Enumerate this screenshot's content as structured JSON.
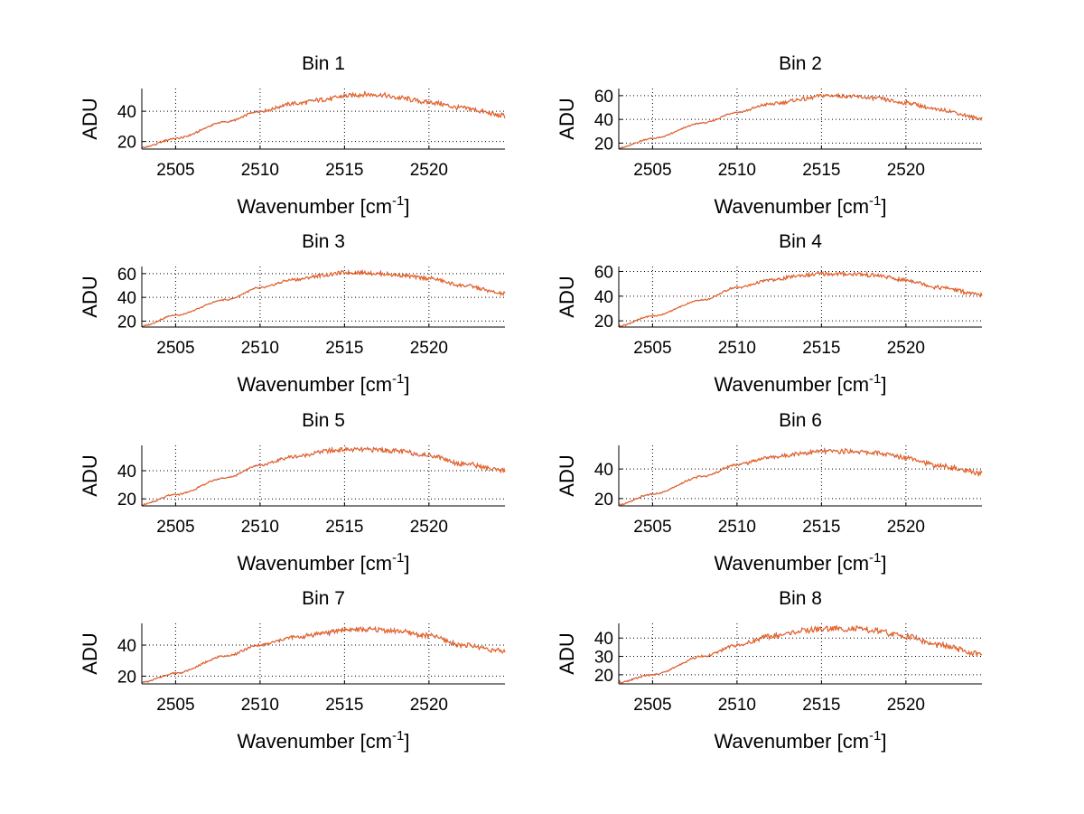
{
  "chart_data": [
    {
      "type": "line",
      "title": "Bin 1",
      "xlabel": "Wavenumber [cm",
      "xlabel_sup": "-1",
      "xlabel_suffix": "]",
      "ylabel": "ADU",
      "xlim": [
        2503,
        2524.5
      ],
      "ylim": [
        15,
        55
      ],
      "xticks": [
        2505,
        2510,
        2515,
        2520
      ],
      "yticks": [
        20,
        40
      ],
      "series": [
        {
          "color": "#0000ff",
          "x": [
            2503,
            2505,
            2508,
            2510,
            2512,
            2514,
            2515,
            2516,
            2517,
            2518,
            2520,
            2522,
            2524.5
          ],
          "y": [
            16,
            22,
            33,
            40,
            45,
            48,
            50,
            51,
            51,
            49,
            46,
            42,
            37
          ]
        },
        {
          "color": "#ff6600",
          "x": [
            2503,
            2505,
            2508,
            2510,
            2512,
            2514,
            2515,
            2516,
            2517,
            2518,
            2520,
            2522,
            2524.5
          ],
          "y": [
            16,
            22,
            33,
            40,
            45,
            48,
            50,
            51,
            51,
            49,
            46,
            42,
            37
          ]
        }
      ]
    },
    {
      "type": "line",
      "title": "Bin 2",
      "xlabel": "Wavenumber [cm",
      "xlabel_sup": "-1",
      "xlabel_suffix": "]",
      "ylabel": "ADU",
      "xlim": [
        2503,
        2524.5
      ],
      "ylim": [
        15,
        66
      ],
      "xticks": [
        2505,
        2510,
        2515,
        2520
      ],
      "yticks": [
        20,
        40,
        60
      ],
      "series": [
        {
          "color": "#0000ff",
          "x": [
            2503,
            2505,
            2508,
            2510,
            2512,
            2514,
            2515,
            2516,
            2517,
            2518,
            2520,
            2522,
            2524.5
          ],
          "y": [
            16,
            24,
            37,
            46,
            53,
            57,
            60,
            60,
            59,
            58,
            54,
            48,
            41
          ]
        },
        {
          "color": "#ff6600",
          "x": [
            2503,
            2505,
            2508,
            2510,
            2512,
            2514,
            2515,
            2516,
            2517,
            2518,
            2520,
            2522,
            2524.5
          ],
          "y": [
            16,
            24,
            37,
            46,
            53,
            57,
            60,
            60,
            59,
            58,
            54,
            48,
            41
          ]
        }
      ]
    },
    {
      "type": "line",
      "title": "Bin 3",
      "xlabel": "Wavenumber [cm",
      "xlabel_sup": "-1",
      "xlabel_suffix": "]",
      "ylabel": "ADU",
      "xlim": [
        2503,
        2524.5
      ],
      "ylim": [
        15,
        66
      ],
      "xticks": [
        2505,
        2510,
        2515,
        2520
      ],
      "yticks": [
        20,
        40,
        60
      ],
      "series": [
        {
          "color": "#0000ff",
          "x": [
            2503,
            2505,
            2508,
            2510,
            2512,
            2514,
            2515,
            2516,
            2517,
            2518,
            2520,
            2522,
            2524.5
          ],
          "y": [
            16,
            25,
            38,
            48,
            55,
            59,
            61,
            61,
            60,
            59,
            56,
            50,
            43
          ]
        },
        {
          "color": "#ff6600",
          "x": [
            2503,
            2505,
            2508,
            2510,
            2512,
            2514,
            2515,
            2516,
            2517,
            2518,
            2520,
            2522,
            2524.5
          ],
          "y": [
            16,
            25,
            38,
            48,
            55,
            59,
            61,
            61,
            60,
            59,
            56,
            50,
            43
          ]
        }
      ]
    },
    {
      "type": "line",
      "title": "Bin 4",
      "xlabel": "Wavenumber [cm",
      "xlabel_sup": "-1",
      "xlabel_suffix": "]",
      "ylabel": "ADU",
      "xlim": [
        2503,
        2524.5
      ],
      "ylim": [
        15,
        64
      ],
      "xticks": [
        2505,
        2510,
        2515,
        2520
      ],
      "yticks": [
        20,
        40,
        60
      ],
      "series": [
        {
          "color": "#0000ff",
          "x": [
            2503,
            2505,
            2508,
            2510,
            2512,
            2514,
            2515,
            2516,
            2517,
            2518,
            2520,
            2522,
            2524.5
          ],
          "y": [
            16,
            24,
            37,
            47,
            53,
            57,
            58,
            58,
            58,
            57,
            53,
            47,
            41
          ]
        },
        {
          "color": "#ff6600",
          "x": [
            2503,
            2505,
            2508,
            2510,
            2512,
            2514,
            2515,
            2516,
            2517,
            2518,
            2520,
            2522,
            2524.5
          ],
          "y": [
            16,
            24,
            37,
            47,
            53,
            57,
            58,
            58,
            58,
            57,
            53,
            47,
            41
          ]
        }
      ]
    },
    {
      "type": "line",
      "title": "Bin 5",
      "xlabel": "Wavenumber [cm",
      "xlabel_sup": "-1",
      "xlabel_suffix": "]",
      "ylabel": "ADU",
      "xlim": [
        2503,
        2524.5
      ],
      "ylim": [
        15,
        58
      ],
      "xticks": [
        2505,
        2510,
        2515,
        2520
      ],
      "yticks": [
        20,
        40
      ],
      "series": [
        {
          "color": "#0000ff",
          "x": [
            2503,
            2505,
            2508,
            2510,
            2512,
            2514,
            2515,
            2516,
            2517,
            2518,
            2520,
            2522,
            2524.5
          ],
          "y": [
            16,
            23,
            35,
            44,
            50,
            54,
            55,
            55,
            55,
            54,
            51,
            45,
            40
          ]
        },
        {
          "color": "#ff6600",
          "x": [
            2503,
            2505,
            2508,
            2510,
            2512,
            2514,
            2515,
            2516,
            2517,
            2518,
            2520,
            2522,
            2524.5
          ],
          "y": [
            16,
            23,
            35,
            44,
            50,
            54,
            55,
            55,
            55,
            54,
            51,
            45,
            40
          ]
        }
      ]
    },
    {
      "type": "line",
      "title": "Bin 6",
      "xlabel": "Wavenumber [cm",
      "xlabel_sup": "-1",
      "xlabel_suffix": "]",
      "ylabel": "ADU",
      "xlim": [
        2503,
        2524.5
      ],
      "ylim": [
        15,
        56
      ],
      "xticks": [
        2505,
        2510,
        2515,
        2520
      ],
      "yticks": [
        20,
        40
      ],
      "series": [
        {
          "color": "#0000ff",
          "x": [
            2503,
            2505,
            2508,
            2510,
            2512,
            2514,
            2515,
            2516,
            2517,
            2518,
            2520,
            2522,
            2524.5
          ],
          "y": [
            16,
            23,
            35,
            43,
            48,
            51,
            52,
            52,
            52,
            51,
            48,
            42,
            37
          ]
        },
        {
          "color": "#ff6600",
          "x": [
            2503,
            2505,
            2508,
            2510,
            2512,
            2514,
            2515,
            2516,
            2517,
            2518,
            2520,
            2522,
            2524.5
          ],
          "y": [
            16,
            23,
            35,
            43,
            48,
            51,
            52,
            52,
            52,
            51,
            48,
            42,
            37
          ]
        }
      ]
    },
    {
      "type": "line",
      "title": "Bin 7",
      "xlabel": "Wavenumber [cm",
      "xlabel_sup": "-1",
      "xlabel_suffix": "]",
      "ylabel": "ADU",
      "xlim": [
        2503,
        2524.5
      ],
      "ylim": [
        15,
        54
      ],
      "xticks": [
        2505,
        2510,
        2515,
        2520
      ],
      "yticks": [
        20,
        40
      ],
      "series": [
        {
          "color": "#0000ff",
          "x": [
            2503,
            2505,
            2508,
            2510,
            2512,
            2514,
            2515,
            2516,
            2517,
            2518,
            2520,
            2522,
            2524.5
          ],
          "y": [
            16,
            22,
            33,
            40,
            45,
            48,
            50,
            50,
            50,
            49,
            46,
            40,
            36
          ]
        },
        {
          "color": "#ff6600",
          "x": [
            2503,
            2505,
            2508,
            2510,
            2512,
            2514,
            2515,
            2516,
            2517,
            2518,
            2520,
            2522,
            2524.5
          ],
          "y": [
            16,
            22,
            33,
            40,
            45,
            48,
            50,
            50,
            50,
            49,
            46,
            40,
            36
          ]
        }
      ]
    },
    {
      "type": "line",
      "title": "Bin 8",
      "xlabel": "Wavenumber [cm",
      "xlabel_sup": "-1",
      "xlabel_suffix": "]",
      "ylabel": "ADU",
      "xlim": [
        2503,
        2524.5
      ],
      "ylim": [
        15,
        48
      ],
      "xticks": [
        2505,
        2510,
        2515,
        2520
      ],
      "yticks": [
        20,
        30,
        40
      ],
      "series": [
        {
          "color": "#0000ff",
          "x": [
            2503,
            2505,
            2508,
            2510,
            2512,
            2514,
            2515,
            2516,
            2517,
            2518,
            2520,
            2522,
            2524.5
          ],
          "y": [
            16,
            20,
            30,
            36,
            41,
            44,
            45,
            45,
            45,
            44,
            41,
            36,
            31
          ]
        },
        {
          "color": "#ff6600",
          "x": [
            2503,
            2505,
            2508,
            2510,
            2512,
            2514,
            2515,
            2516,
            2517,
            2518,
            2520,
            2522,
            2524.5
          ],
          "y": [
            16,
            20,
            30,
            36,
            41,
            44,
            45,
            45,
            45,
            44,
            41,
            36,
            31
          ]
        }
      ]
    }
  ]
}
